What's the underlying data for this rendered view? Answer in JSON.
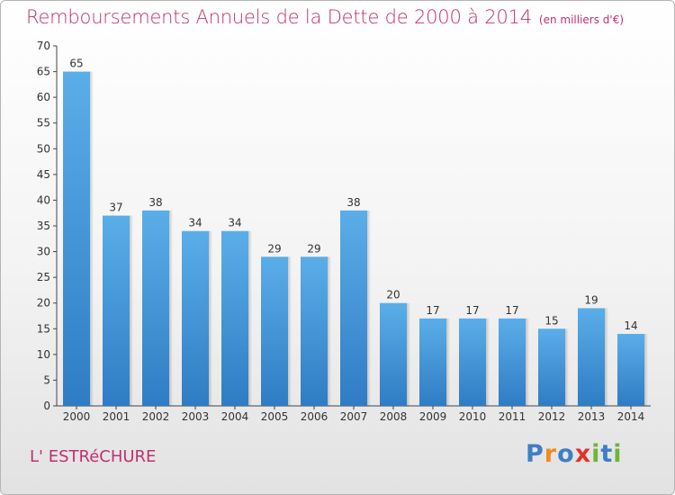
{
  "title": "Remboursements Annuels de la Dette de 2000 à 2014",
  "unit": "(en milliers d'€)",
  "commune": "L' ESTRéCHURE",
  "logo": {
    "letters": [
      "P",
      "r",
      "o",
      "x",
      "i",
      "t",
      "i"
    ],
    "colors": [
      "#3d7fc6",
      "#f08c1e",
      "#3d7fc6",
      "#e0322a",
      "#6db53b",
      "#3d7fc6",
      "#6db53b"
    ]
  },
  "colors": {
    "bar": "#3d8fd6",
    "bar_light": "#5aaee8",
    "title": "#c0306f"
  },
  "chart_data": {
    "type": "bar",
    "categories": [
      "2000",
      "2001",
      "2002",
      "2003",
      "2004",
      "2005",
      "2006",
      "2007",
      "2008",
      "2009",
      "2010",
      "2011",
      "2012",
      "2013",
      "2014"
    ],
    "values": [
      65,
      37,
      38,
      34,
      34,
      29,
      29,
      38,
      20,
      17,
      17,
      17,
      15,
      19,
      14
    ],
    "ylim": [
      0,
      70
    ],
    "yticks": [
      0,
      5,
      10,
      15,
      20,
      25,
      30,
      35,
      40,
      45,
      50,
      55,
      60,
      65,
      70
    ],
    "grid": false
  }
}
